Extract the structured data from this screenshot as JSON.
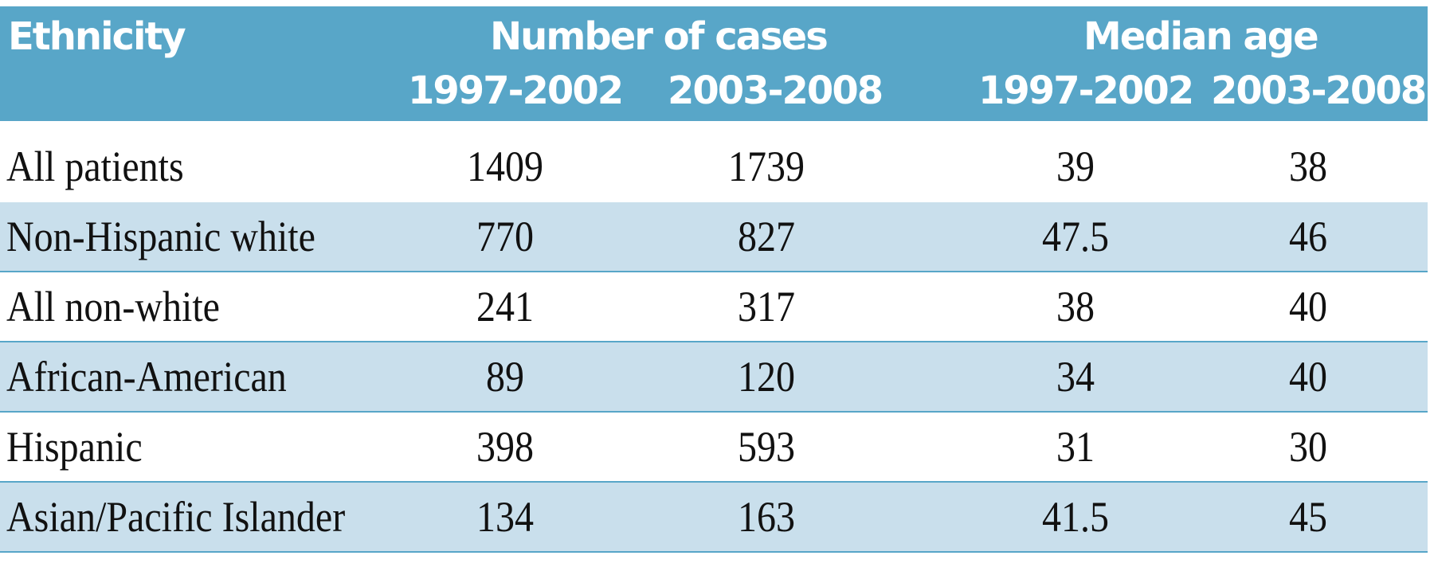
{
  "table": {
    "headers": {
      "ethnicity": "Ethnicity",
      "cases_group": "Number of cases",
      "median_group": "Median age",
      "cases_1997_2002": "1997-2002",
      "cases_2003_2008": "2003-2008",
      "median_1997_2002": "1997-2002",
      "median_2003_2008": "2003-2008"
    },
    "rows": [
      {
        "label": "All patients",
        "cases_1997_2002": "1409",
        "cases_2003_2008": "1739",
        "median_1997_2002": "39",
        "median_2003_2008": "38"
      },
      {
        "label": "Non-Hispanic white",
        "cases_1997_2002": "770",
        "cases_2003_2008": "827",
        "median_1997_2002": "47.5",
        "median_2003_2008": "46"
      },
      {
        "label": "All non-white",
        "cases_1997_2002": "241",
        "cases_2003_2008": "317",
        "median_1997_2002": "38",
        "median_2003_2008": "40"
      },
      {
        "label": "African-American",
        "cases_1997_2002": "89",
        "cases_2003_2008": "120",
        "median_1997_2002": "34",
        "median_2003_2008": "40"
      },
      {
        "label": "Hispanic",
        "cases_1997_2002": "398",
        "cases_2003_2008": "593",
        "median_1997_2002": "31",
        "median_2003_2008": "30"
      },
      {
        "label": "Asian/Pacific Islander",
        "cases_1997_2002": "134",
        "cases_2003_2008": "163",
        "median_1997_2002": "41.5",
        "median_2003_2008": "45"
      }
    ]
  },
  "colors": {
    "header_bg": "#58a6c8",
    "row_shade": "#c9dfec",
    "rule": "#58a6c8"
  }
}
